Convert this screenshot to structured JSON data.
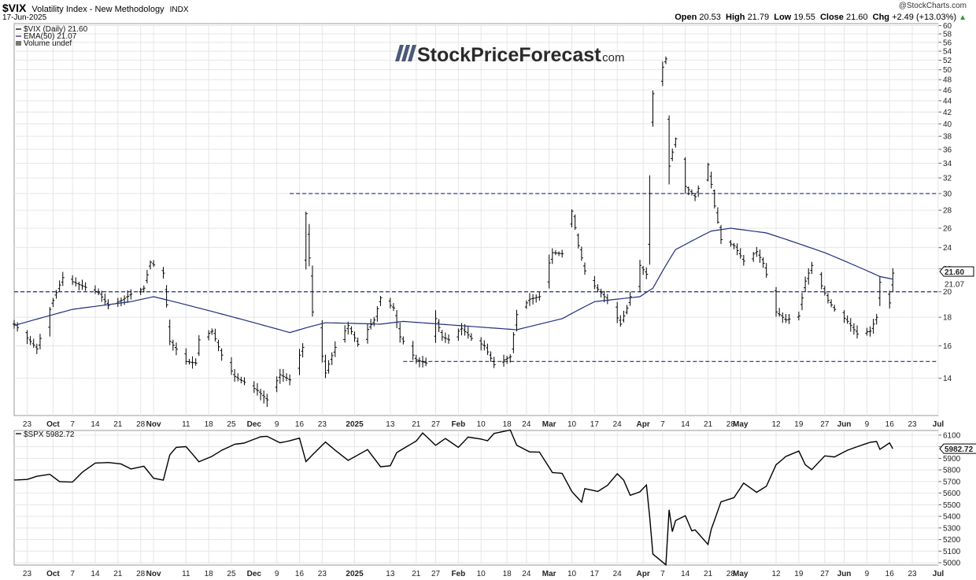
{
  "header": {
    "symbol": "$VIX",
    "name": "Volatility Index - New Methodology",
    "exchange": "INDX",
    "date": "17-Jun-2025",
    "credit": "@StockCharts.com",
    "open_label": "Open",
    "open": "20.53",
    "high_label": "High",
    "high": "21.79",
    "low_label": "Low",
    "low": "19.55",
    "close_label": "Close",
    "close": "21.60",
    "chg_label": "Chg",
    "chg": "+2.49 (+13.03%)",
    "chg_arrow": "▲"
  },
  "watermark": {
    "brand": "StockPriceForecast",
    "suffix": ".com"
  },
  "colors": {
    "price": "#000000",
    "ema": "#1f2f7a",
    "dashed": "#1f2f7a",
    "grid": "#e6e6e6"
  },
  "chart_data": [
    {
      "type": "ohlc",
      "panel": "top",
      "legend": [
        "$VIX (Daily) 21.60",
        "EMA(50) 21.07",
        "Volume undef"
      ],
      "last_price_label": "21.60",
      "ema_label": "21.07",
      "y_ticks": [
        14,
        16,
        18,
        20,
        22,
        24,
        26,
        28,
        30,
        32,
        34,
        36,
        38,
        40,
        42,
        44,
        46,
        48,
        50,
        52,
        54,
        56,
        58,
        60
      ],
      "ylim": [
        12,
        60.5
      ],
      "scale": "log",
      "horizontal_levels": [
        {
          "value": 30,
          "from": "2024-12-13",
          "to": "2025-07-01"
        },
        {
          "value": 20,
          "from": "2024-09-19",
          "to": "2025-07-01"
        },
        {
          "value": 15,
          "from": "2025-01-17",
          "to": "2025-07-01"
        }
      ],
      "anchors": [
        [
          "2024-09-19",
          17.5
        ],
        [
          "2024-09-26",
          15.8
        ],
        [
          "2024-10-01",
          19.3
        ],
        [
          "2024-10-04",
          21.2
        ],
        [
          "2024-10-09",
          20.6
        ],
        [
          "2024-10-15",
          19.9
        ],
        [
          "2024-10-18",
          18.9
        ],
        [
          "2024-10-22",
          19.3
        ],
        [
          "2024-10-25",
          19.8
        ],
        [
          "2024-10-29",
          20.3
        ],
        [
          "2024-10-31",
          22.6
        ],
        [
          "2024-11-04",
          21.6
        ],
        [
          "2024-11-06",
          16.3
        ],
        [
          "2024-11-11",
          15.0
        ],
        [
          "2024-11-14",
          14.9
        ],
        [
          "2024-11-15",
          16.4
        ],
        [
          "2024-11-19",
          17.0
        ],
        [
          "2024-11-22",
          15.4
        ],
        [
          "2024-11-26",
          14.1
        ],
        [
          "2024-12-03",
          13.3
        ],
        [
          "2024-12-06",
          12.8
        ],
        [
          "2024-12-10",
          14.2
        ],
        [
          "2024-12-13",
          13.9
        ],
        [
          "2024-12-17",
          15.9
        ],
        [
          "2024-12-18",
          27.6
        ],
        [
          "2024-12-20",
          18.4
        ],
        [
          "2024-12-24",
          14.3
        ],
        [
          "2024-12-27",
          15.9
        ],
        [
          "2024-12-31",
          17.4
        ],
        [
          "2025-01-03",
          16.1
        ],
        [
          "2025-01-08",
          17.8
        ],
        [
          "2025-01-10",
          19.5
        ],
        [
          "2025-01-14",
          18.7
        ],
        [
          "2025-01-16",
          16.6
        ],
        [
          "2025-01-21",
          15.1
        ],
        [
          "2025-01-24",
          14.9
        ],
        [
          "2025-01-27",
          17.9
        ],
        [
          "2025-01-29",
          16.6
        ],
        [
          "2025-01-31",
          16.4
        ],
        [
          "2025-02-04",
          17.2
        ],
        [
          "2025-02-07",
          16.5
        ],
        [
          "2025-02-11",
          16.0
        ],
        [
          "2025-02-14",
          14.8
        ],
        [
          "2025-02-19",
          15.3
        ],
        [
          "2025-02-21",
          18.2
        ],
        [
          "2025-02-25",
          19.4
        ],
        [
          "2025-02-28",
          19.6
        ],
        [
          "2025-03-04",
          23.5
        ],
        [
          "2025-03-07",
          23.4
        ],
        [
          "2025-03-10",
          27.9
        ],
        [
          "2025-03-12",
          24.2
        ],
        [
          "2025-03-14",
          21.8
        ],
        [
          "2025-03-17",
          20.5
        ],
        [
          "2025-03-19",
          19.9
        ],
        [
          "2025-03-21",
          19.3
        ],
        [
          "2025-03-25",
          17.5
        ],
        [
          "2025-03-27",
          18.7
        ],
        [
          "2025-03-31",
          22.3
        ],
        [
          "2025-04-02",
          21.5
        ],
        [
          "2025-04-03",
          30.0
        ],
        [
          "2025-04-04",
          45.3
        ],
        [
          "2025-04-08",
          52.3
        ],
        [
          "2025-04-09",
          33.6
        ],
        [
          "2025-04-11",
          37.6
        ],
        [
          "2025-04-14",
          30.9
        ],
        [
          "2025-04-17",
          29.6
        ],
        [
          "2025-04-21",
          33.8
        ],
        [
          "2025-04-23",
          28.5
        ],
        [
          "2025-04-25",
          24.8
        ],
        [
          "2025-04-29",
          24.2
        ],
        [
          "2025-05-02",
          22.7
        ],
        [
          "2025-05-06",
          23.6
        ],
        [
          "2025-05-08",
          22.5
        ],
        [
          "2025-05-12",
          18.4
        ],
        [
          "2025-05-15",
          17.8
        ],
        [
          "2025-05-19",
          18.1
        ],
        [
          "2025-05-21",
          20.9
        ],
        [
          "2025-05-23",
          22.3
        ],
        [
          "2025-05-28",
          19.3
        ],
        [
          "2025-05-30",
          18.6
        ],
        [
          "2025-06-03",
          17.7
        ],
        [
          "2025-06-06",
          16.8
        ],
        [
          "2025-06-10",
          17.0
        ],
        [
          "2025-06-12",
          18.0
        ],
        [
          "2025-06-13",
          20.8
        ],
        [
          "2025-06-16",
          19.1
        ],
        [
          "2025-06-17",
          21.6
        ]
      ],
      "ema_anchors": [
        [
          "2024-09-19",
          17.4
        ],
        [
          "2024-10-07",
          18.6
        ],
        [
          "2024-10-25",
          19.2
        ],
        [
          "2024-11-01",
          19.6
        ],
        [
          "2024-11-15",
          18.7
        ],
        [
          "2024-12-02",
          17.6
        ],
        [
          "2024-12-13",
          16.9
        ],
        [
          "2024-12-19",
          17.3
        ],
        [
          "2024-12-24",
          17.6
        ],
        [
          "2025-01-10",
          17.5
        ],
        [
          "2025-01-17",
          17.7
        ],
        [
          "2025-02-03",
          17.4
        ],
        [
          "2025-02-21",
          17.1
        ],
        [
          "2025-03-07",
          17.9
        ],
        [
          "2025-03-17",
          19.2
        ],
        [
          "2025-03-31",
          19.6
        ],
        [
          "2025-04-04",
          20.3
        ],
        [
          "2025-04-11",
          23.8
        ],
        [
          "2025-04-22",
          25.7
        ],
        [
          "2025-04-28",
          26.0
        ],
        [
          "2025-05-09",
          25.5
        ],
        [
          "2025-05-27",
          23.5
        ],
        [
          "2025-06-13",
          21.3
        ],
        [
          "2025-06-17",
          21.07
        ]
      ]
    },
    {
      "type": "line",
      "panel": "bottom",
      "legend": "$SPX 5982.72",
      "last_price_label": "5982.72",
      "y_ticks": [
        5000,
        5100,
        5200,
        5300,
        5400,
        5500,
        5600,
        5700,
        5800,
        5900,
        6000,
        6100
      ],
      "ylim": [
        4980,
        6140
      ],
      "values": [
        [
          "2024-09-19",
          5713
        ],
        [
          "2024-09-23",
          5718
        ],
        [
          "2024-09-26",
          5745
        ],
        [
          "2024-09-30",
          5762
        ],
        [
          "2024-10-03",
          5699
        ],
        [
          "2024-10-07",
          5695
        ],
        [
          "2024-10-10",
          5780
        ],
        [
          "2024-10-14",
          5859
        ],
        [
          "2024-10-18",
          5864
        ],
        [
          "2024-10-22",
          5851
        ],
        [
          "2024-10-25",
          5808
        ],
        [
          "2024-10-29",
          5832
        ],
        [
          "2024-11-01",
          5728
        ],
        [
          "2024-11-04",
          5712
        ],
        [
          "2024-11-06",
          5929
        ],
        [
          "2024-11-08",
          5995
        ],
        [
          "2024-11-11",
          6001
        ],
        [
          "2024-11-15",
          5870
        ],
        [
          "2024-11-19",
          5917
        ],
        [
          "2024-11-22",
          5969
        ],
        [
          "2024-11-26",
          6021
        ],
        [
          "2024-11-29",
          6032
        ],
        [
          "2024-12-04",
          6086
        ],
        [
          "2024-12-06",
          6090
        ],
        [
          "2024-12-10",
          6034
        ],
        [
          "2024-12-13",
          6051
        ],
        [
          "2024-12-16",
          6074
        ],
        [
          "2024-12-18",
          5872
        ],
        [
          "2024-12-20",
          5930
        ],
        [
          "2024-12-24",
          6040
        ],
        [
          "2024-12-27",
          5970
        ],
        [
          "2024-12-31",
          5882
        ],
        [
          "2025-01-06",
          5975
        ],
        [
          "2025-01-10",
          5827
        ],
        [
          "2025-01-13",
          5836
        ],
        [
          "2025-01-15",
          5950
        ],
        [
          "2025-01-21",
          6049
        ],
        [
          "2025-01-23",
          6118
        ],
        [
          "2025-01-27",
          6012
        ],
        [
          "2025-01-30",
          6071
        ],
        [
          "2025-02-03",
          5994
        ],
        [
          "2025-02-06",
          6083
        ],
        [
          "2025-02-10",
          6066
        ],
        [
          "2025-02-12",
          6051
        ],
        [
          "2025-02-14",
          6114
        ],
        [
          "2025-02-19",
          6144
        ],
        [
          "2025-02-21",
          6013
        ],
        [
          "2025-02-25",
          5955
        ],
        [
          "2025-02-28",
          5954
        ],
        [
          "2025-03-04",
          5778
        ],
        [
          "2025-03-07",
          5770
        ],
        [
          "2025-03-10",
          5614
        ],
        [
          "2025-03-13",
          5522
        ],
        [
          "2025-03-14",
          5639
        ],
        [
          "2025-03-18",
          5614
        ],
        [
          "2025-03-21",
          5667
        ],
        [
          "2025-03-24",
          5767
        ],
        [
          "2025-03-26",
          5712
        ],
        [
          "2025-03-28",
          5581
        ],
        [
          "2025-03-31",
          5611
        ],
        [
          "2025-04-02",
          5670
        ],
        [
          "2025-04-03",
          5397
        ],
        [
          "2025-04-04",
          5074
        ],
        [
          "2025-04-08",
          4982
        ],
        [
          "2025-04-09",
          5456
        ],
        [
          "2025-04-10",
          5268
        ],
        [
          "2025-04-11",
          5363
        ],
        [
          "2025-04-14",
          5405
        ],
        [
          "2025-04-16",
          5275
        ],
        [
          "2025-04-17",
          5283
        ],
        [
          "2025-04-21",
          5158
        ],
        [
          "2025-04-22",
          5288
        ],
        [
          "2025-04-25",
          5525
        ],
        [
          "2025-04-29",
          5561
        ],
        [
          "2025-05-02",
          5686
        ],
        [
          "2025-05-06",
          5607
        ],
        [
          "2025-05-09",
          5660
        ],
        [
          "2025-05-12",
          5844
        ],
        [
          "2025-05-15",
          5916
        ],
        [
          "2025-05-19",
          5963
        ],
        [
          "2025-05-21",
          5845
        ],
        [
          "2025-05-23",
          5802
        ],
        [
          "2025-05-27",
          5921
        ],
        [
          "2025-05-30",
          5912
        ],
        [
          "2025-06-03",
          5970
        ],
        [
          "2025-06-06",
          6000
        ],
        [
          "2025-06-10",
          6038
        ],
        [
          "2025-06-12",
          6045
        ],
        [
          "2025-06-13",
          5977
        ],
        [
          "2025-06-16",
          6033
        ],
        [
          "2025-06-17",
          5982.72
        ]
      ]
    }
  ],
  "x_axis": {
    "labels": [
      {
        "date": "2024-09-23",
        "text": "23"
      },
      {
        "date": "2024-10-01",
        "text": "Oct",
        "bold": true
      },
      {
        "date": "2024-10-07",
        "text": "7"
      },
      {
        "date": "2024-10-14",
        "text": "14"
      },
      {
        "date": "2024-10-21",
        "text": "21"
      },
      {
        "date": "2024-10-28",
        "text": "28"
      },
      {
        "date": "2024-11-01",
        "text": "Nov",
        "bold": true
      },
      {
        "date": "2024-11-11",
        "text": "11"
      },
      {
        "date": "2024-11-18",
        "text": "18"
      },
      {
        "date": "2024-11-25",
        "text": "25"
      },
      {
        "date": "2024-12-02",
        "text": "Dec",
        "bold": true
      },
      {
        "date": "2024-12-09",
        "text": "9"
      },
      {
        "date": "2024-12-16",
        "text": "16"
      },
      {
        "date": "2024-12-23",
        "text": "23"
      },
      {
        "date": "2025-01-02",
        "text": "2025",
        "bold": true
      },
      {
        "date": "2025-01-13",
        "text": "13"
      },
      {
        "date": "2025-01-21",
        "text": "21"
      },
      {
        "date": "2025-01-27",
        "text": "27"
      },
      {
        "date": "2025-02-03",
        "text": "Feb",
        "bold": true
      },
      {
        "date": "2025-02-10",
        "text": "10"
      },
      {
        "date": "2025-02-18",
        "text": "18"
      },
      {
        "date": "2025-02-24",
        "text": "24"
      },
      {
        "date": "2025-03-03",
        "text": "Mar",
        "bold": true
      },
      {
        "date": "2025-03-10",
        "text": "10"
      },
      {
        "date": "2025-03-17",
        "text": "17"
      },
      {
        "date": "2025-03-24",
        "text": "24"
      },
      {
        "date": "2025-04-01",
        "text": "Apr",
        "bold": true
      },
      {
        "date": "2025-04-07",
        "text": "7"
      },
      {
        "date": "2025-04-14",
        "text": "14"
      },
      {
        "date": "2025-04-21",
        "text": "21"
      },
      {
        "date": "2025-04-28",
        "text": "28"
      },
      {
        "date": "2025-05-01",
        "text": "May",
        "bold": true
      },
      {
        "date": "2025-05-12",
        "text": "12"
      },
      {
        "date": "2025-05-19",
        "text": "19"
      },
      {
        "date": "2025-05-27",
        "text": "27"
      },
      {
        "date": "2025-06-02",
        "text": "Jun",
        "bold": true
      },
      {
        "date": "2025-06-09",
        "text": "9"
      },
      {
        "date": "2025-06-16",
        "text": "16"
      },
      {
        "date": "2025-06-23",
        "text": "23"
      },
      {
        "date": "2025-07-01",
        "text": "Jul",
        "bold": true
      }
    ]
  }
}
